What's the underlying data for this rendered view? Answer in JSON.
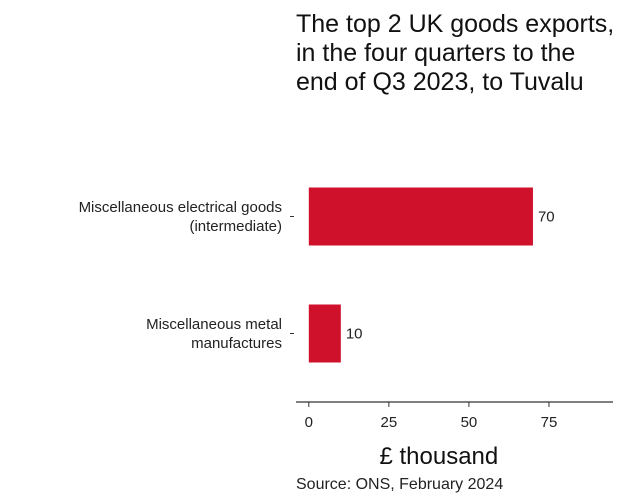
{
  "chart_data": {
    "type": "bar",
    "orientation": "horizontal",
    "title": "The top 2 UK goods exports, in the four quarters to the end of Q3 2023, to Tuvalu",
    "categories": [
      [
        "Miscellaneous electrical goods",
        "(intermediate)"
      ],
      [
        "Miscellaneous metal",
        "manufactures"
      ]
    ],
    "values": [
      70,
      10
    ],
    "value_labels": [
      "70",
      "10"
    ],
    "xlabel": "£ thousand",
    "ylabel": "",
    "xlim": [
      -4,
      95
    ],
    "xticks": [
      0,
      25,
      50,
      75
    ],
    "tick_labels": [
      "0",
      "25",
      "50",
      "75"
    ],
    "bar_color": "#d0112b",
    "grid": false,
    "source": "Source: ONS, February 2024"
  }
}
